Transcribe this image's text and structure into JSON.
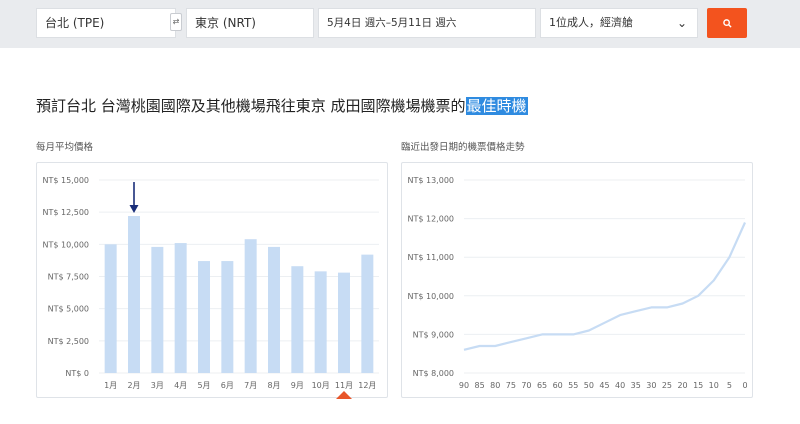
{
  "search": {
    "origin": "台北 (TPE)",
    "destination": "東京 (NRT)",
    "dates": "5月4日 週六–5月11日 週六",
    "passengers": "1位成人，經濟艙"
  },
  "headline": {
    "text": "預訂台北 台灣桃園國際及其他機場飛往東京 成田國際機場機票的",
    "highlight": "最佳時機"
  },
  "monthly_chart": {
    "label": "每月平均價格"
  },
  "trend_chart": {
    "label": "臨近出發日期的機票價格走勢"
  },
  "colors": {
    "bar": "#c7dcf4",
    "line": "#c7dcf4",
    "arrow": "#1a2e7a",
    "marker": "#e8562a",
    "search_button": "#f3531e",
    "highlight": "#2f8be0"
  },
  "chart_data": [
    {
      "type": "bar",
      "categories": [
        "1月",
        "2月",
        "3月",
        "4月",
        "5月",
        "6月",
        "7月",
        "8月",
        "9月",
        "10月",
        "11月",
        "12月"
      ],
      "values": [
        10000,
        12200,
        9800,
        10100,
        8700,
        8700,
        10400,
        9800,
        8300,
        7900,
        7800,
        9200
      ],
      "y_ticks": [
        "NT$ 0",
        "NT$ 2,500",
        "NT$ 5,000",
        "NT$ 7,500",
        "NT$ 10,000",
        "NT$ 12,500",
        "NT$ 15,000"
      ],
      "ylim": [
        0,
        15000
      ],
      "highlight_high": "2月",
      "highlight_low": "11月",
      "grid": true
    },
    {
      "type": "line",
      "x": [
        90,
        85,
        80,
        75,
        70,
        65,
        60,
        55,
        50,
        45,
        40,
        35,
        30,
        25,
        20,
        15,
        10,
        5,
        0
      ],
      "x_ticks": [
        "90",
        "85",
        "80",
        "75",
        "70",
        "65",
        "60",
        "55",
        "50",
        "45",
        "40",
        "35",
        "30",
        "25",
        "20",
        "15",
        "10",
        "5",
        "0"
      ],
      "values": [
        8600,
        8700,
        8700,
        8800,
        8900,
        9000,
        9000,
        9000,
        9100,
        9300,
        9500,
        9600,
        9700,
        9700,
        9800,
        10000,
        10400,
        11000,
        11900
      ],
      "y_ticks": [
        "NT$ 8,000",
        "NT$ 9,000",
        "NT$ 10,000",
        "NT$ 11,000",
        "NT$ 12,000",
        "NT$ 13,000"
      ],
      "ylim": [
        8000,
        13000
      ],
      "grid": true
    }
  ]
}
